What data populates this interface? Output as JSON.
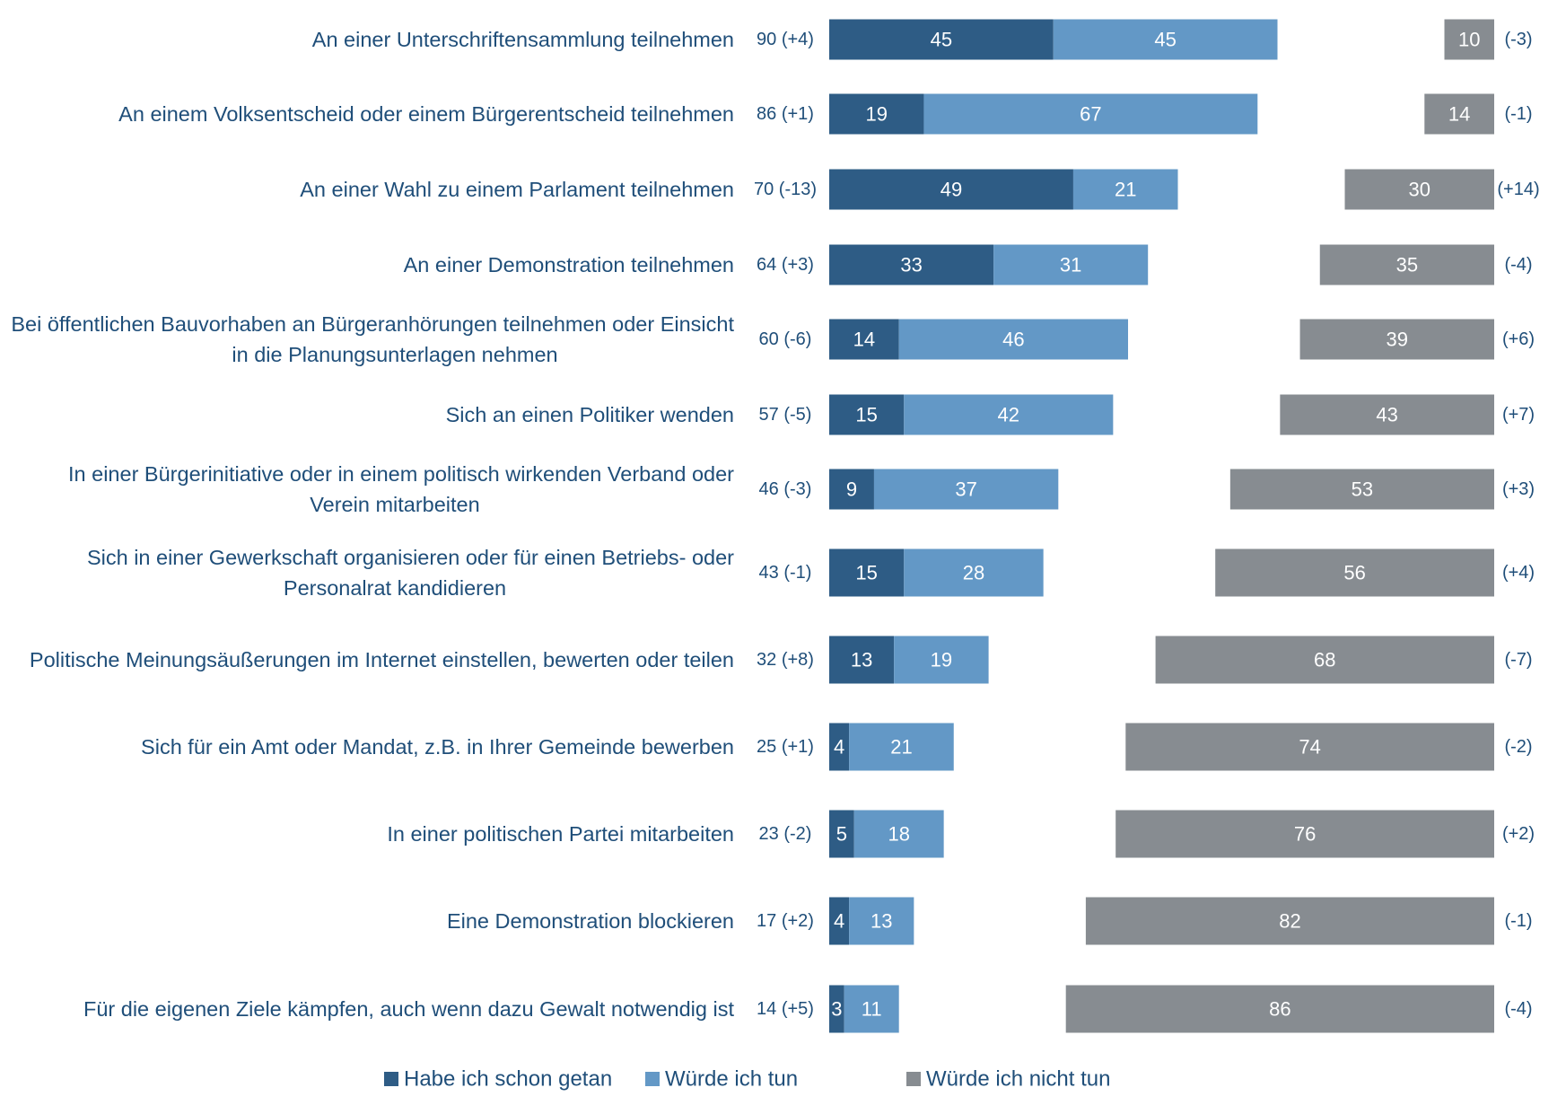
{
  "chart_data": {
    "type": "bar",
    "orientation": "horizontal",
    "stacked": true,
    "grid": false,
    "legend_position": "bottom",
    "colors": {
      "done": "#2e5c85",
      "would": "#6398c6",
      "would_not": "#878c91"
    },
    "categories": [
      [
        "An einer Unterschriftensammlung teilnehmen"
      ],
      [
        "An einem Volksentscheid oder einem Bürgerentscheid teilnehmen"
      ],
      [
        "An einer Wahl zu einem Parlament teilnehmen"
      ],
      [
        "An einer Demonstration teilnehmen"
      ],
      [
        "Bei öffentlichen Bauvorhaben an Bürgeranhörungen teilnehmen oder Einsicht",
        "in die Planungsunterlagen nehmen"
      ],
      [
        "Sich an einen Politiker wenden"
      ],
      [
        "In einer Bürgerinitiative oder in einem politisch wirkenden Verband oder",
        "Verein mitarbeiten"
      ],
      [
        "Sich in einer Gewerkschaft organisieren oder für einen Betriebs- oder",
        "Personalrat kandidieren"
      ],
      [
        "Politische Meinungsäußerungen im Internet einstellen, bewerten oder teilen"
      ],
      [
        "Sich für ein Amt oder Mandat, z.B. in Ihrer Gemeinde bewerben"
      ],
      [
        "In einer politischen Partei mitarbeiten"
      ],
      [
        "Eine Demonstration blockieren"
      ],
      [
        "Für die eigenen Ziele kämpfen, auch wenn dazu Gewalt notwendig ist"
      ]
    ],
    "totals": [
      "90 (+4)",
      "86 (+1)",
      "70 (-13)",
      "64 (+3)",
      "60 (-6)",
      "57 (-5)",
      "46 (-3)",
      "43 (-1)",
      "32 (+8)",
      "25 (+1)",
      "23 (-2)",
      "17 (+2)",
      "14 (+5)"
    ],
    "changes_would_not": [
      "(-3)",
      "(-1)",
      "(+14)",
      "(-4)",
      "(+6)",
      "(+7)",
      "(+3)",
      "(+4)",
      "(-7)",
      "(-2)",
      "(+2)",
      "(-1)",
      "(-4)"
    ],
    "series": [
      {
        "name": "Habe ich schon getan",
        "values": [
          45,
          19,
          49,
          33,
          14,
          15,
          9,
          15,
          13,
          4,
          5,
          4,
          3
        ]
      },
      {
        "name": "Würde ich tun",
        "values": [
          45,
          67,
          21,
          31,
          46,
          42,
          37,
          28,
          19,
          21,
          18,
          13,
          11
        ]
      },
      {
        "name": "Würde ich nicht tun",
        "values": [
          10,
          14,
          30,
          35,
          39,
          43,
          53,
          56,
          68,
          74,
          76,
          82,
          86
        ]
      }
    ]
  }
}
